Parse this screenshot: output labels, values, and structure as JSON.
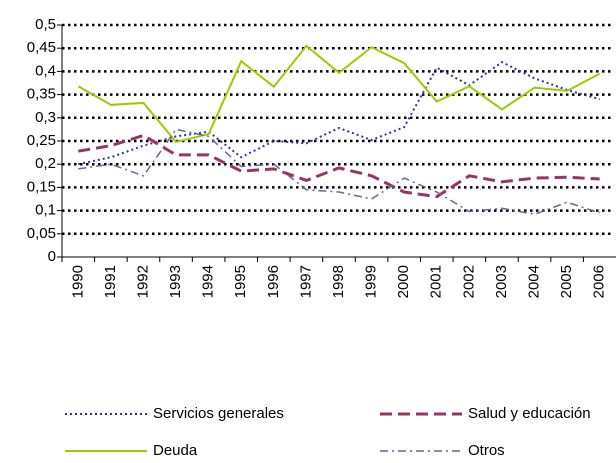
{
  "chart_data": {
    "type": "line",
    "categories": [
      "1990",
      "1991",
      "1992",
      "1993",
      "1994",
      "1995",
      "1996",
      "1997",
      "1998",
      "1999",
      "2000",
      "2001",
      "2002",
      "2003",
      "2004",
      "2005",
      "2006"
    ],
    "series": [
      {
        "name": "Servicios generales",
        "color": "#333399",
        "dash": "dotted",
        "values": [
          0.2,
          0.215,
          0.24,
          0.26,
          0.27,
          0.215,
          0.25,
          0.245,
          0.278,
          0.252,
          0.28,
          0.408,
          0.37,
          0.42,
          0.385,
          0.36,
          0.34
        ]
      },
      {
        "name": "Salud y educación",
        "color": "#993366",
        "dash": "dashed",
        "values": [
          0.228,
          0.24,
          0.262,
          0.22,
          0.22,
          0.185,
          0.19,
          0.165,
          0.192,
          0.175,
          0.14,
          0.13,
          0.175,
          0.162,
          0.17,
          0.172,
          0.168
        ]
      },
      {
        "name": "Deuda",
        "color": "#99cc00",
        "dash": "solid",
        "values": [
          0.368,
          0.328,
          0.332,
          0.248,
          0.265,
          0.422,
          0.367,
          0.455,
          0.397,
          0.452,
          0.418,
          0.335,
          0.368,
          0.318,
          0.365,
          0.358,
          0.395
        ]
      },
      {
        "name": "Otros",
        "color": "#666699",
        "dash": "dashdot",
        "values": [
          0.19,
          0.2,
          0.175,
          0.275,
          0.26,
          0.195,
          0.2,
          0.145,
          0.14,
          0.125,
          0.17,
          0.14,
          0.098,
          0.105,
          0.092,
          0.118,
          0.095
        ]
      }
    ],
    "ylim": [
      0,
      0.5
    ],
    "yticks": [
      0,
      {
        "value": 0.05,
        "label": "0,05"
      },
      {
        "value": 0.1,
        "label": "0,1"
      },
      {
        "value": 0.15,
        "label": "0,15"
      },
      {
        "value": 0.2,
        "label": "0,2"
      },
      {
        "value": 0.25,
        "label": "0,25"
      },
      {
        "value": 0.3,
        "label": "0,3"
      },
      {
        "value": 0.35,
        "label": "0,35"
      },
      {
        "value": 0.4,
        "label": "0,4"
      },
      {
        "value": 0.45,
        "label": "0,45"
      },
      {
        "value": 0.5,
        "label": "0,5"
      }
    ],
    "grid": true,
    "legend": "bottom"
  }
}
